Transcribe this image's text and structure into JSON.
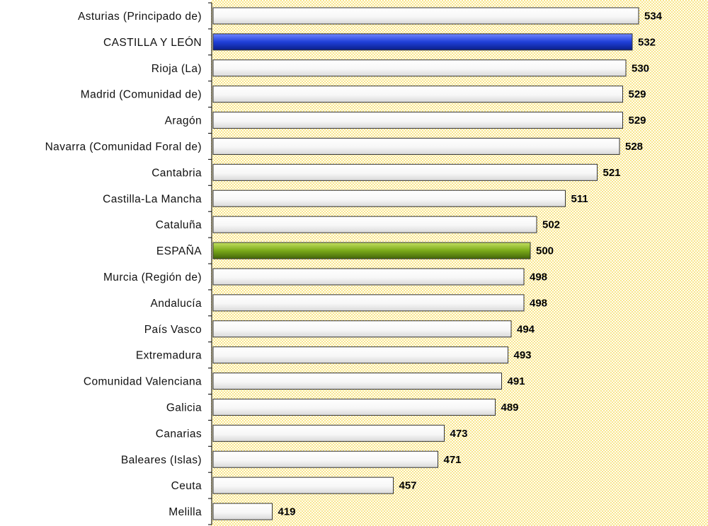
{
  "chart_data": {
    "type": "bar",
    "orientation": "horizontal",
    "categories": [
      "Asturias (Principado de)",
      "CASTILLA Y LEÓN",
      "Rioja (La)",
      "Madrid (Comunidad de)",
      "Aragón",
      "Navarra (Comunidad Foral de)",
      "Cantabria",
      "Castilla-La Mancha",
      "Cataluña",
      "ESPAÑA",
      "Murcia (Región de)",
      "Andalucía",
      "País Vasco",
      "Extremadura",
      "Comunidad Valenciana",
      "Galicia",
      "Canarias",
      "Baleares (Islas)",
      "Ceuta",
      "Melilla"
    ],
    "values": [
      534,
      532,
      530,
      529,
      529,
      528,
      521,
      511,
      502,
      500,
      498,
      498,
      494,
      493,
      491,
      489,
      473,
      471,
      457,
      419
    ],
    "value_labels": [
      "534",
      "532",
      "530",
      "529",
      "529",
      "528",
      "521",
      "511",
      "502",
      "500",
      "498",
      "498",
      "494",
      "493",
      "491",
      "489",
      "473",
      "471",
      "457",
      "419"
    ],
    "highlight": {
      "CASTILLA Y LEÓN": "#1f3fd8",
      "ESPAÑA": "#7aaa1a"
    },
    "default_bar_color": "#f2f2f2",
    "plot_background": "#fff2a8",
    "xlim": [
      400,
      540
    ],
    "grid": false,
    "legend": "none",
    "title": "",
    "xlabel": "",
    "ylabel": ""
  }
}
